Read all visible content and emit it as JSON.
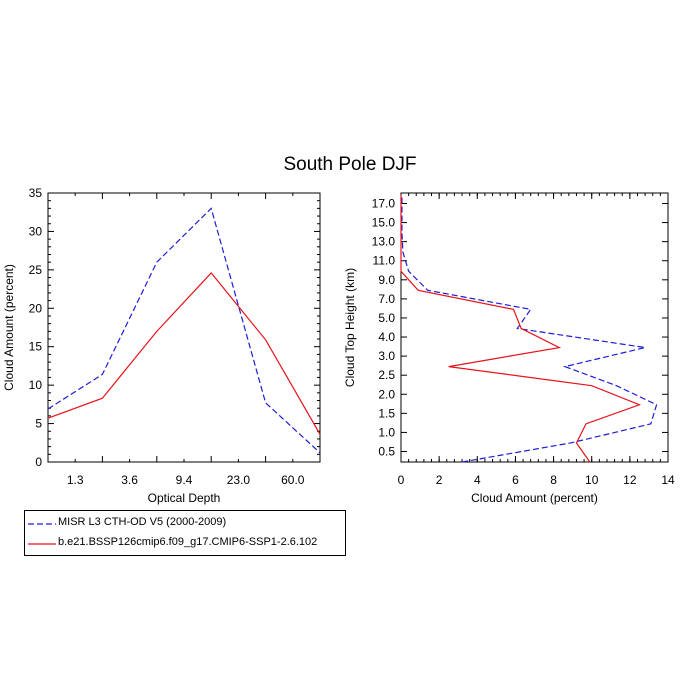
{
  "figure": {
    "title": "South Pole DJF"
  },
  "legend": {
    "entries": [
      {
        "label": "MISR L3 CTH-OD V5 (2000-2009)",
        "color": "#1d1dd6",
        "dash": true
      },
      {
        "label": "b.e21.BSSP126cmip6.f09_g17.CMIP6-SSP1-2.6.102",
        "color": "#e8121a",
        "dash": false
      }
    ]
  },
  "chart_data": [
    {
      "type": "line",
      "title": "",
      "xlabel": "Optical Depth",
      "ylabel": "Cloud Amount (percent)",
      "x_tick_labels": [
        "1.3",
        "3.6",
        "9.4",
        "23.0",
        "60.0"
      ],
      "y_ticks": [
        "0",
        "5",
        "10",
        "15",
        "20",
        "25",
        "30",
        "35"
      ],
      "ylim": [
        0,
        35
      ],
      "series": [
        {
          "name": "MISR L3 CTH-OD V5 (2000-2009)",
          "color": "#1d1dd6",
          "dash": true,
          "values": [
            6.9,
            11.4,
            26.0,
            33.0,
            7.7,
            1.2
          ]
        },
        {
          "name": "b.e21.BSSP126cmip6.f09_g17.CMIP6-SSP1-2.6.102",
          "color": "#e8121a",
          "dash": false,
          "values": [
            5.7,
            8.3,
            17.0,
            24.6,
            15.9,
            3.6
          ]
        }
      ]
    },
    {
      "type": "line",
      "title": "",
      "xlabel": "Cloud Amount (percent)",
      "ylabel": "Cloud Top Height (km)",
      "xlim": [
        0,
        14
      ],
      "x_ticks": [
        "0",
        "2",
        "4",
        "6",
        "8",
        "10",
        "12",
        "14"
      ],
      "y_tick_labels": [
        "0.5",
        "1.0",
        "1.5",
        "2.0",
        "2.5",
        "3.0",
        "4.0",
        "5.0",
        "7.0",
        "9.0",
        "11.0",
        "13.0",
        "15.0",
        "17.0"
      ],
      "series": [
        {
          "name": "MISR L3 CTH-OD V5 (2000-2009)",
          "color": "#1d1dd6",
          "dash": true,
          "values": [
            3.2,
            8.9,
            13.1,
            13.4,
            11.3,
            8.6,
            12.8,
            6.1,
            6.8,
            1.4,
            0.4,
            0.1,
            0.05,
            0.05,
            0.05
          ]
        },
        {
          "name": "b.e21.BSSP126cmip6.f09_g17.CMIP6-SSP1-2.6.102",
          "color": "#e8121a",
          "dash": false,
          "values": [
            9.9,
            9.2,
            9.7,
            12.5,
            10.0,
            2.5,
            8.3,
            6.3,
            5.9,
            0.9,
            0.0,
            0.0,
            0.0,
            0.0,
            0.0
          ]
        }
      ]
    }
  ]
}
